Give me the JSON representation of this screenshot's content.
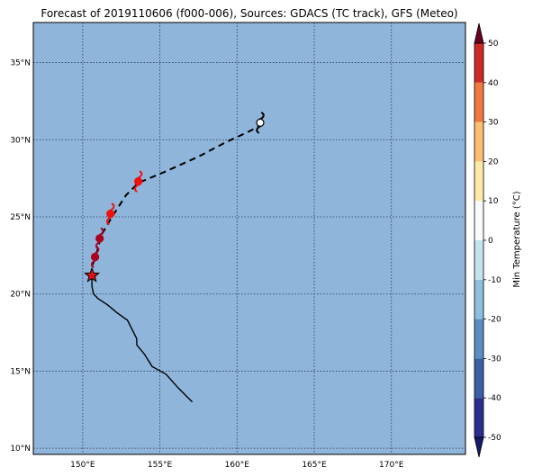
{
  "title": "Forecast of 2019110606 (f000-006), Sources: GDACS (TC track), GFS (Meteo)",
  "map": {
    "ocean_color": "#8fb5da",
    "lon_range": [
      146.8,
      174.8
    ],
    "lat_range": [
      9.6,
      37.6
    ],
    "lon_ticks": [
      150,
      155,
      160,
      165,
      170
    ],
    "lat_ticks": [
      10,
      15,
      20,
      25,
      30,
      35
    ],
    "lon_labels": [
      "150°E",
      "155°E",
      "160°E",
      "165°E",
      "170°E"
    ],
    "lat_labels": [
      "10°N",
      "15°N",
      "20°N",
      "25°N",
      "30°N",
      "35°N"
    ],
    "grid": true
  },
  "past_track": [
    [
      157.1,
      13.0
    ],
    [
      156.2,
      13.9
    ],
    [
      155.4,
      14.8
    ],
    [
      154.5,
      15.3
    ],
    [
      154.0,
      16.1
    ],
    [
      153.5,
      16.7
    ],
    [
      153.5,
      17.1
    ],
    [
      153.2,
      17.7
    ],
    [
      152.9,
      18.3
    ],
    [
      152.2,
      18.8
    ],
    [
      151.6,
      19.3
    ],
    [
      151.0,
      19.7
    ],
    [
      150.7,
      20.0
    ],
    [
      150.6,
      20.5
    ],
    [
      150.6,
      21.2
    ]
  ],
  "forecast_track": [
    [
      150.6,
      21.2
    ],
    [
      150.6,
      21.8
    ],
    [
      150.8,
      22.3
    ],
    [
      151.0,
      23.0
    ],
    [
      151.2,
      23.8
    ],
    [
      151.9,
      25.0
    ],
    [
      152.8,
      26.4
    ],
    [
      153.6,
      27.2
    ],
    [
      155.5,
      28.0
    ],
    [
      157.5,
      28.9
    ],
    [
      159.2,
      29.8
    ],
    [
      160.7,
      30.5
    ],
    [
      161.5,
      30.9
    ]
  ],
  "current_position": {
    "lon": 150.6,
    "lat": 21.2,
    "color": "#e01010"
  },
  "storm_markers": [
    {
      "lon": 150.8,
      "lat": 22.4,
      "color": "#a8001e"
    },
    {
      "lon": 151.1,
      "lat": 23.6,
      "color": "#a8001e"
    },
    {
      "lon": 151.8,
      "lat": 25.2,
      "color": "#f01010"
    },
    {
      "lon": 153.6,
      "lat": 27.3,
      "color": "#f01010"
    },
    {
      "lon": 161.5,
      "lat": 31.1,
      "color": "#ffffff"
    }
  ],
  "colorbar": {
    "label": "Min Temperature (°C)",
    "ticks": [
      -50,
      -40,
      -30,
      -20,
      -10,
      0,
      10,
      20,
      30,
      40,
      50
    ],
    "colors": [
      "#2a2f8f",
      "#3a5fa6",
      "#5b8fc2",
      "#8ebfdd",
      "#c5e3ef",
      "#f7fbfb",
      "#fde9a8",
      "#fcbf72",
      "#f1793f",
      "#cd2a26",
      "#9c0026"
    ],
    "under_color": "#15196b",
    "over_color": "#6a0020"
  }
}
